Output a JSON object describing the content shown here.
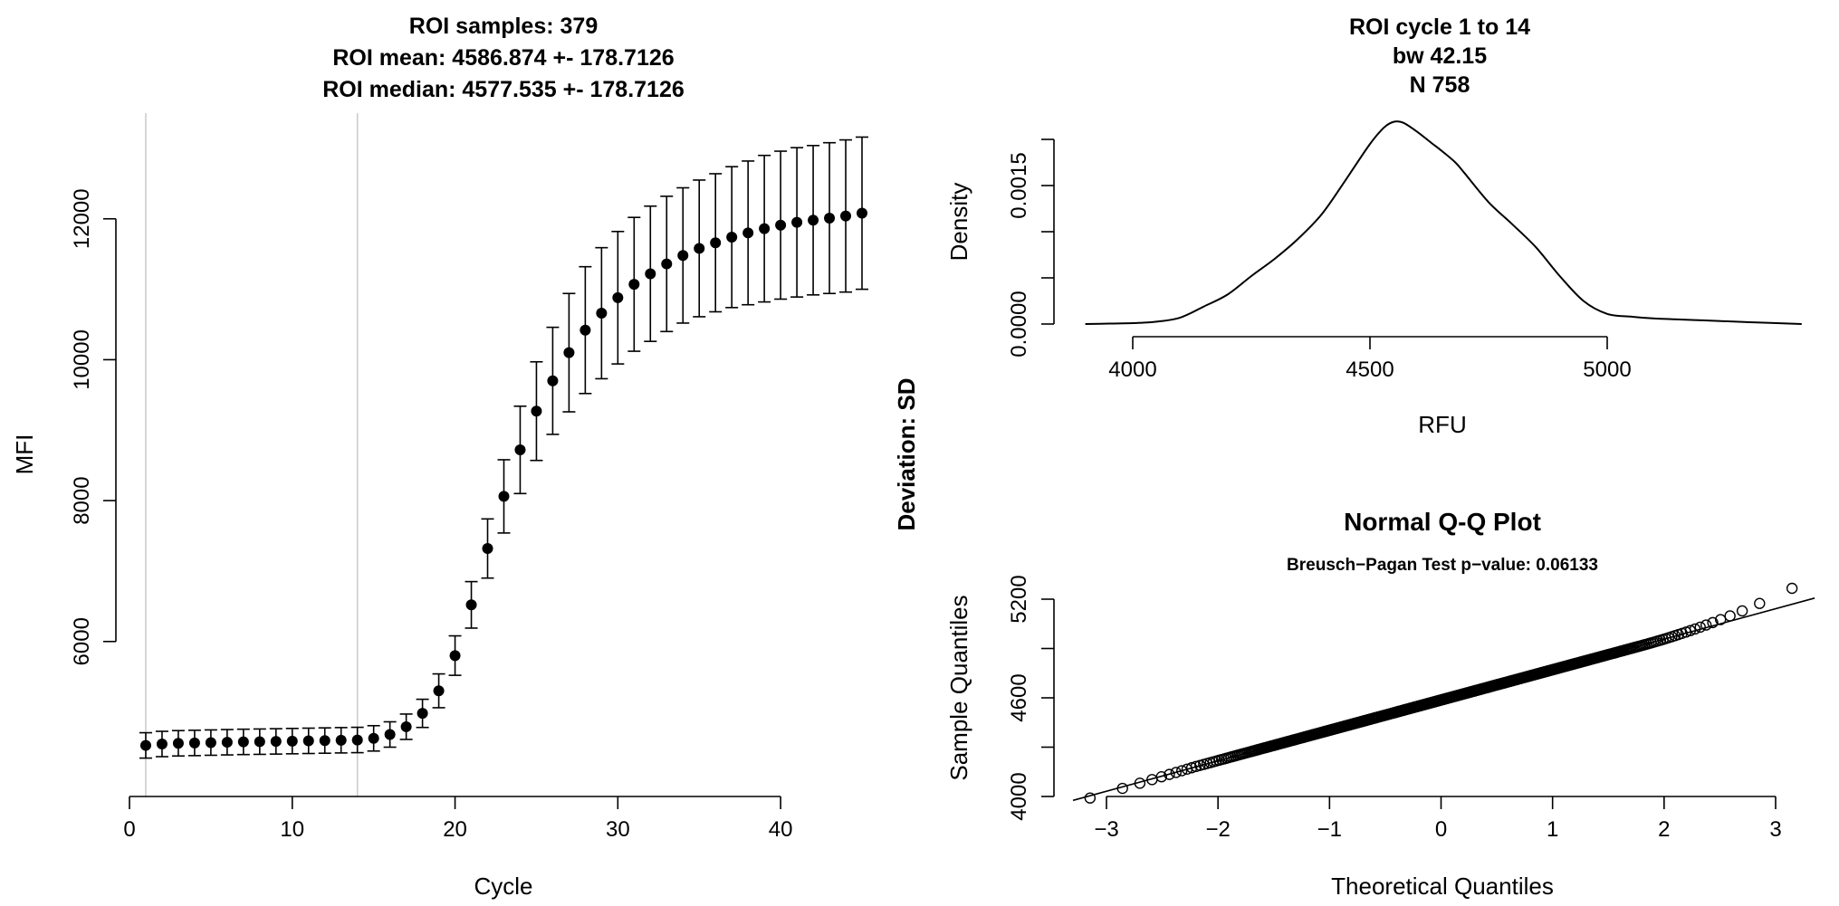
{
  "charts": {
    "left": {
      "title_lines": [
        "ROI samples: 379",
        "ROI mean: 4586.874 +- 178.7126",
        "ROI median: 4577.535 +- 178.7126"
      ],
      "xlabel": "Cycle",
      "ylabel": "MFI"
    },
    "density": {
      "title_lines": [
        "ROI cycle  1  to  14",
        "bw  42.15",
        "N  758"
      ],
      "xlabel": "RFU",
      "ylabel": "Density"
    },
    "qq": {
      "title": "Normal Q-Q Plot",
      "subtitle": "Breusch−Pagan Test p−value: 0.06133",
      "xlabel": "Theoretical Quantiles",
      "ylabel": "Sample Quantiles"
    },
    "side_label": "Deviation: SD"
  },
  "chart_data": [
    {
      "type": "scatter",
      "role": "mfi-per-cycle",
      "xlabel": "Cycle",
      "ylabel": "MFI",
      "xlim": [
        0,
        45
      ],
      "ylim": [
        3800,
        13500
      ],
      "xticks": [
        0,
        10,
        20,
        30,
        40
      ],
      "yticks": [
        6000,
        8000,
        10000,
        12000
      ],
      "roi_lines": [
        1,
        14
      ],
      "x": [
        1,
        2,
        3,
        4,
        5,
        6,
        7,
        8,
        9,
        10,
        11,
        12,
        13,
        14,
        15,
        16,
        17,
        18,
        19,
        20,
        21,
        22,
        23,
        24,
        25,
        26,
        27,
        28,
        29,
        30,
        31,
        32,
        33,
        34,
        35,
        36,
        37,
        38,
        39,
        40,
        41,
        42,
        43,
        44,
        45
      ],
      "y": [
        4525,
        4545,
        4555,
        4560,
        4565,
        4570,
        4575,
        4578,
        4582,
        4586,
        4590,
        4594,
        4598,
        4602,
        4625,
        4680,
        4790,
        4980,
        5300,
        5800,
        6520,
        7320,
        8060,
        8720,
        9270,
        9700,
        10100,
        10420,
        10660,
        10880,
        11070,
        11220,
        11360,
        11480,
        11580,
        11660,
        11740,
        11800,
        11860,
        11910,
        11950,
        11980,
        12010,
        12040,
        12080
      ],
      "yerr": [
        180,
        180,
        180,
        180,
        180,
        180,
        180,
        180,
        180,
        180,
        180,
        180,
        180,
        180,
        180,
        180,
        180,
        200,
        240,
        280,
        330,
        420,
        520,
        620,
        700,
        760,
        840,
        900,
        930,
        940,
        950,
        960,
        960,
        960,
        970,
        980,
        1000,
        1020,
        1040,
        1050,
        1060,
        1060,
        1070,
        1080,
        1080
      ]
    },
    {
      "type": "line",
      "role": "roi-density",
      "xlabel": "RFU",
      "ylabel": "Density",
      "xlim": [
        3850,
        5450
      ],
      "ylim": [
        0,
        0.0021
      ],
      "xticks": [
        4000,
        4500,
        5000
      ],
      "yticks": [
        0.0,
        0.0005,
        0.001,
        0.0015,
        0.002
      ],
      "ytick_labels": [
        "0.0000",
        "",
        "",
        "0.0015",
        ""
      ],
      "x": [
        3900,
        3950,
        4000,
        4050,
        4100,
        4150,
        4200,
        4250,
        4300,
        4350,
        4400,
        4450,
        4500,
        4530,
        4550,
        4570,
        4600,
        4630,
        4650,
        4680,
        4700,
        4750,
        4800,
        4850,
        4900,
        4950,
        5000,
        5050,
        5100,
        5200,
        5300,
        5410
      ],
      "y": [
        0.0,
        5e-06,
        1e-05,
        2.5e-05,
        7e-05,
        0.00019,
        0.00032,
        0.00052,
        0.00071,
        0.00093,
        0.0012,
        0.00157,
        0.00195,
        0.00213,
        0.00219,
        0.00218,
        0.00208,
        0.00196,
        0.00188,
        0.00175,
        0.00163,
        0.00132,
        0.00108,
        0.00083,
        0.00052,
        0.00025,
        0.00011,
        8e-05,
        6e-05,
        4e-05,
        2e-05,
        0.0
      ]
    },
    {
      "type": "scatter",
      "role": "normal-qq",
      "xlabel": "Theoretical Quantiles",
      "ylabel": "Sample Quantiles",
      "xlim": [
        -3.35,
        3.35
      ],
      "ylim": [
        3980,
        5330
      ],
      "xticks": [
        -3,
        -2,
        -1,
        0,
        1,
        2,
        3
      ],
      "xtick_labels": [
        "−3",
        "−2",
        "−1",
        "0",
        "1",
        "2",
        "3"
      ],
      "yticks": [
        4000,
        4600,
        5200
      ],
      "reference_line": {
        "intercept": 4586.874,
        "slope": 185
      },
      "sample_count": 758,
      "center": 4586.874,
      "scale": 178.7126
    }
  ]
}
